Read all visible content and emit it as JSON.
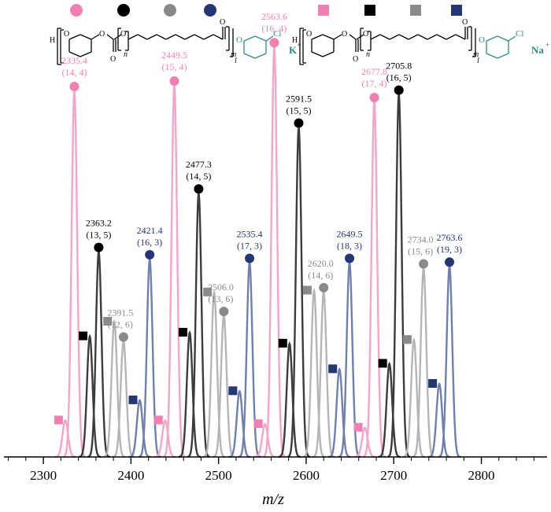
{
  "colors": {
    "pink": "#f27fb2",
    "black": "#000000",
    "gray": "#8a8a8a",
    "navy": "#243675",
    "pink_line": "#f3a6c8",
    "black_line": "#3c3c3c",
    "gray_line": "#b5b5b5",
    "navy_line": "#6f7fae",
    "teal": "#2e8b88"
  },
  "legend": {
    "circles": [
      "pink",
      "black",
      "gray",
      "navy"
    ],
    "squares": [
      "pink",
      "black",
      "gray",
      "navy"
    ],
    "structure_left": {
      "h": "H",
      "o": "O",
      "n": "n",
      "m": "m",
      "l": "l",
      "cl": "Cl",
      "ion": "K",
      "ion_charge": "+"
    },
    "structure_right": {
      "h": "H",
      "o": "O",
      "n": "n",
      "m": "m",
      "l": "l",
      "cl": "Cl",
      "ion": "Na",
      "ion_charge": "+"
    }
  },
  "chart_data": {
    "type": "line",
    "xlabel": "m/z",
    "xlim": [
      2255,
      2875
    ],
    "ylim": [
      0,
      100
    ],
    "xticks": [
      2300,
      2400,
      2500,
      2600,
      2700,
      2800
    ],
    "series": [
      {
        "color": "pink",
        "marker": "circle",
        "peaks": [
          {
            "x": 2335.4,
            "y": 100,
            "label": "2335.4",
            "sub": "(14, 4)"
          },
          {
            "x": 2449.5,
            "y": 101.5,
            "label": "2449.5",
            "sub": "(15, 4)"
          },
          {
            "x": 2563.6,
            "y": 112,
            "label": "2563.6",
            "sub": "(16, 4)"
          },
          {
            "x": 2677.8,
            "y": 97,
            "label": "2677.8",
            "sub": "(17, 4)"
          }
        ]
      },
      {
        "color": "black",
        "marker": "circle",
        "peaks": [
          {
            "x": 2363.2,
            "y": 56,
            "label": "2363.2",
            "sub": "(13, 5)"
          },
          {
            "x": 2477.3,
            "y": 72,
            "label": "2477.3",
            "sub": "(14, 5)"
          },
          {
            "x": 2591.5,
            "y": 90,
            "label": "2591.5",
            "sub": "(15, 5)"
          },
          {
            "x": 2705.8,
            "y": 99,
            "label": "2705.8",
            "sub": "(16, 5)"
          }
        ]
      },
      {
        "color": "gray",
        "marker": "circle",
        "peaks": [
          {
            "x": 2391.5,
            "y": 31.5,
            "label": "2391.5",
            "sub": "(12, 6)"
          },
          {
            "x": 2506.0,
            "y": 38.5,
            "label": "2506.0",
            "sub": "(13, 6)"
          },
          {
            "x": 2620.0,
            "y": 45,
            "label": "2620.0",
            "sub": "(14, 6)"
          },
          {
            "x": 2734.0,
            "y": 51.5,
            "label": "2734.0",
            "sub": "(15, 6)"
          }
        ]
      },
      {
        "color": "navy",
        "marker": "circle",
        "peaks": [
          {
            "x": 2421.4,
            "y": 54,
            "label": "2421.4",
            "sub": "(16, 3)"
          },
          {
            "x": 2535.4,
            "y": 53,
            "label": "2535.4",
            "sub": "(17, 3)"
          },
          {
            "x": 2649.5,
            "y": 53,
            "label": "2649.5",
            "sub": "(18, 3)"
          },
          {
            "x": 2763.6,
            "y": 52,
            "label": "2763.6",
            "sub": "(19, 3)"
          }
        ]
      },
      {
        "color": "pink",
        "marker": "square",
        "peaks": [
          {
            "x": 2325.0,
            "y": 10
          },
          {
            "x": 2439.0,
            "y": 10
          },
          {
            "x": 2553.0,
            "y": 9
          },
          {
            "x": 2667.0,
            "y": 8
          }
        ]
      },
      {
        "color": "black",
        "marker": "square",
        "peaks": [
          {
            "x": 2353.0,
            "y": 33
          },
          {
            "x": 2467.0,
            "y": 34
          },
          {
            "x": 2581.0,
            "y": 31
          },
          {
            "x": 2695.0,
            "y": 25.5
          }
        ]
      },
      {
        "color": "gray",
        "marker": "square",
        "peaks": [
          {
            "x": 2381.0,
            "y": 37
          },
          {
            "x": 2495.0,
            "y": 45
          },
          {
            "x": 2609.0,
            "y": 45.5
          },
          {
            "x": 2723.0,
            "y": 32
          }
        ]
      },
      {
        "color": "navy",
        "marker": "square",
        "peaks": [
          {
            "x": 2410.0,
            "y": 15.5
          },
          {
            "x": 2524.0,
            "y": 18
          },
          {
            "x": 2638.0,
            "y": 24
          },
          {
            "x": 2752.0,
            "y": 20
          }
        ]
      }
    ]
  }
}
